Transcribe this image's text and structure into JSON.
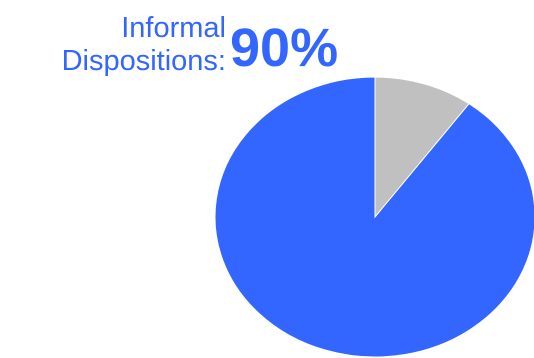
{
  "chart_data": {
    "type": "pie",
    "annotation": {
      "label_line1": "Informal",
      "label_line2": "Dispositions:",
      "value_text": "90%"
    },
    "slices": [
      {
        "value": 90,
        "color": "#3366ff"
      },
      {
        "value": 10,
        "color": "#c0c0c0"
      }
    ]
  }
}
